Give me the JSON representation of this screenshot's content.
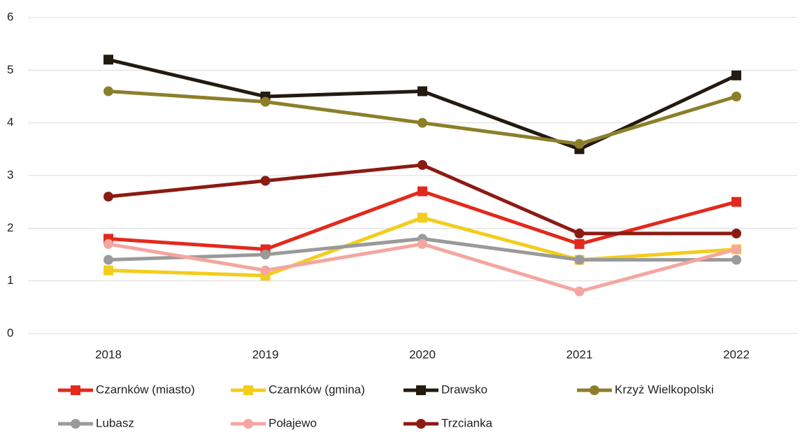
{
  "chart_data": {
    "type": "line",
    "categories": [
      "2018",
      "2019",
      "2020",
      "2021",
      "2022"
    ],
    "series": [
      {
        "name": "Czarnków (miasto)",
        "color": "#e3291d",
        "marker": "square",
        "values": [
          1.8,
          1.6,
          2.7,
          1.7,
          2.5
        ]
      },
      {
        "name": "Czarnków (gmina)",
        "color": "#f3cd1c",
        "marker": "square",
        "values": [
          1.2,
          1.1,
          2.2,
          1.4,
          1.6
        ]
      },
      {
        "name": "Drawsko",
        "color": "#231a10",
        "marker": "square",
        "values": [
          5.2,
          4.5,
          4.6,
          3.5,
          4.9
        ]
      },
      {
        "name": "Krzyż Wielkopolski",
        "color": "#8b7f2a",
        "marker": "circle",
        "values": [
          4.6,
          4.4,
          4.0,
          3.6,
          4.5
        ]
      },
      {
        "name": "Lubasz",
        "color": "#9a9a9a",
        "marker": "circle",
        "values": [
          1.4,
          1.5,
          1.8,
          1.4,
          1.4
        ]
      },
      {
        "name": "Połajewo",
        "color": "#f4a6a0",
        "marker": "circle",
        "values": [
          1.7,
          1.2,
          1.7,
          0.8,
          1.6
        ]
      },
      {
        "name": "Trzcianka",
        "color": "#8c1b13",
        "marker": "circle",
        "values": [
          2.6,
          2.9,
          3.2,
          1.9,
          1.9
        ]
      }
    ],
    "ylim": [
      0,
      6
    ],
    "yticks": [
      0,
      1,
      2,
      3,
      4,
      5,
      6
    ],
    "grid": true,
    "legend": "bottom"
  }
}
